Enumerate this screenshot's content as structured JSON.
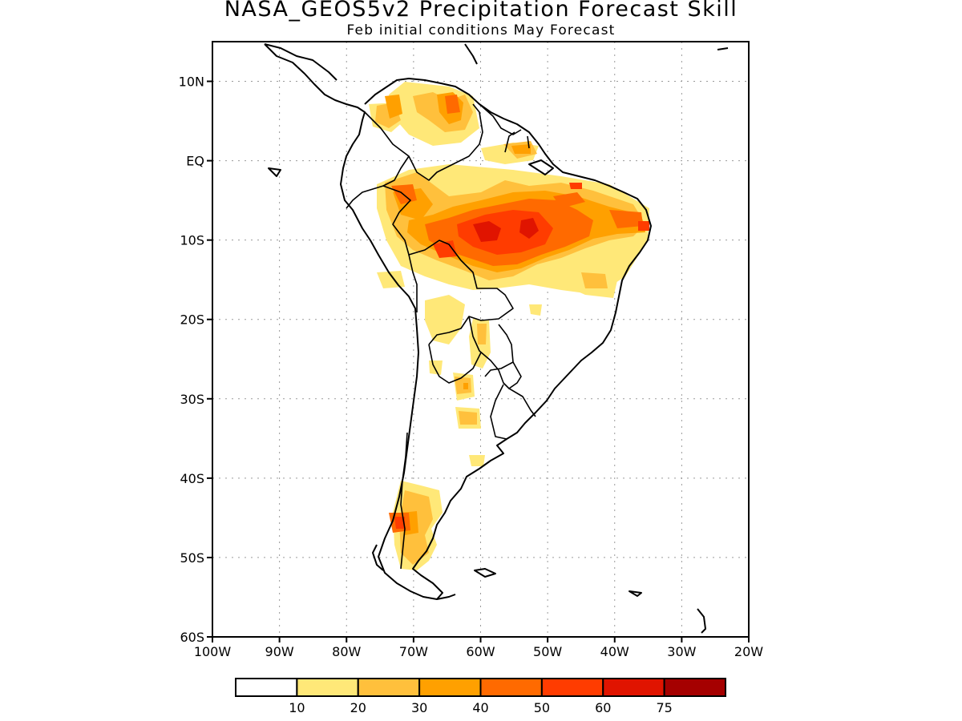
{
  "title": "NASA_GEOS5v2 Precipitation Forecast Skill",
  "subtitle": "Feb initial conditions   May Forecast",
  "map": {
    "lon_range": [
      -100,
      -20
    ],
    "lat_range": [
      -60,
      15
    ],
    "lat_labels": [
      {
        "lat": 10,
        "label": "10N"
      },
      {
        "lat": 0,
        "label": "EQ"
      },
      {
        "lat": -10,
        "label": "10S"
      },
      {
        "lat": -20,
        "label": "20S"
      },
      {
        "lat": -30,
        "label": "30S"
      },
      {
        "lat": -40,
        "label": "40S"
      },
      {
        "lat": -50,
        "label": "50S"
      },
      {
        "lat": -60,
        "label": "60S"
      }
    ],
    "lon_labels": [
      {
        "lon": -100,
        "label": "100W"
      },
      {
        "lon": -90,
        "label": "90W"
      },
      {
        "lon": -80,
        "label": "80W"
      },
      {
        "lon": -70,
        "label": "70W"
      },
      {
        "lon": -60,
        "label": "60W"
      },
      {
        "lon": -50,
        "label": "50W"
      },
      {
        "lon": -40,
        "label": "40W"
      },
      {
        "lon": -30,
        "label": "30W"
      },
      {
        "lon": -20,
        "label": "20W"
      }
    ],
    "grid": "dotted"
  },
  "colorbar": {
    "colors": [
      "#ffffff",
      "#ffe878",
      "#ffc03c",
      "#ffa000",
      "#ff6a00",
      "#ff3c00",
      "#e01400",
      "#a50000"
    ],
    "labels": [
      "10",
      "20",
      "30",
      "40",
      "50",
      "60",
      "75"
    ]
  }
}
